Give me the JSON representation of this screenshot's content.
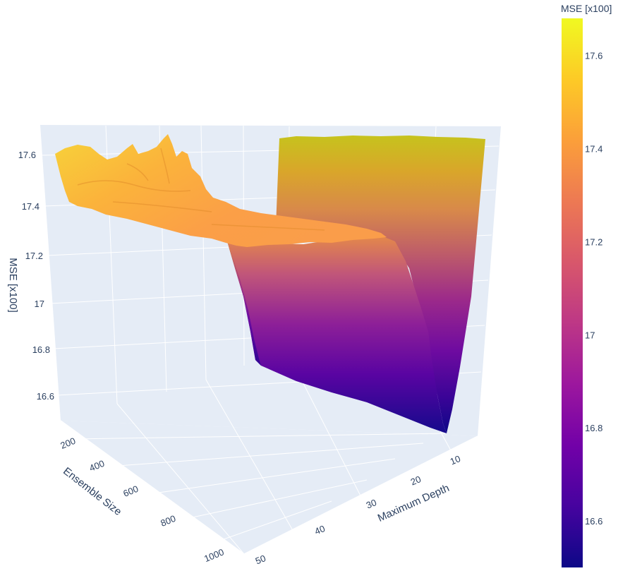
{
  "chart_data": {
    "type": "surface",
    "title": "",
    "axes": {
      "x": {
        "label": "Maximum Depth",
        "ticks": [
          "10",
          "20",
          "30",
          "40",
          "50"
        ],
        "range": [
          2,
          50
        ]
      },
      "y": {
        "label": "Ensemble Size",
        "ticks": [
          "200",
          "400",
          "600",
          "800",
          "1000"
        ],
        "range": [
          100,
          1000
        ]
      },
      "z": {
        "label": "MSE [x100]",
        "ticks": [
          "16.6",
          "16.8",
          "17",
          "17.2",
          "17.4",
          "17.6"
        ],
        "range": [
          16.5,
          17.7
        ]
      }
    },
    "colorbar": {
      "title": "MSE [x100]",
      "ticks": [
        "17.6",
        "17.4",
        "17.2",
        "17",
        "16.8",
        "16.6"
      ],
      "range": [
        16.5,
        17.68
      ],
      "colorscale": [
        "#0d0887",
        "#46039f",
        "#7201a8",
        "#9c179e",
        "#bd3786",
        "#d8576b",
        "#ed7953",
        "#fb9f3a",
        "#fdca26",
        "#f0f921"
      ]
    },
    "surface_profile": {
      "description_values": [
        {
          "max_depth": 2,
          "mse": 17.65
        },
        {
          "max_depth": 4,
          "mse": 16.5
        },
        {
          "max_depth": 6,
          "mse": 16.5
        },
        {
          "max_depth": 10,
          "mse": 16.52
        },
        {
          "max_depth": 20,
          "mse": 16.56
        },
        {
          "max_depth": 22,
          "mse": 17.36
        },
        {
          "max_depth": 30,
          "mse": 17.38
        },
        {
          "max_depth": 40,
          "mse": 17.4
        },
        {
          "max_depth": 50,
          "mse": 17.58
        }
      ]
    },
    "grid": true,
    "legend": "colorbar-right"
  }
}
